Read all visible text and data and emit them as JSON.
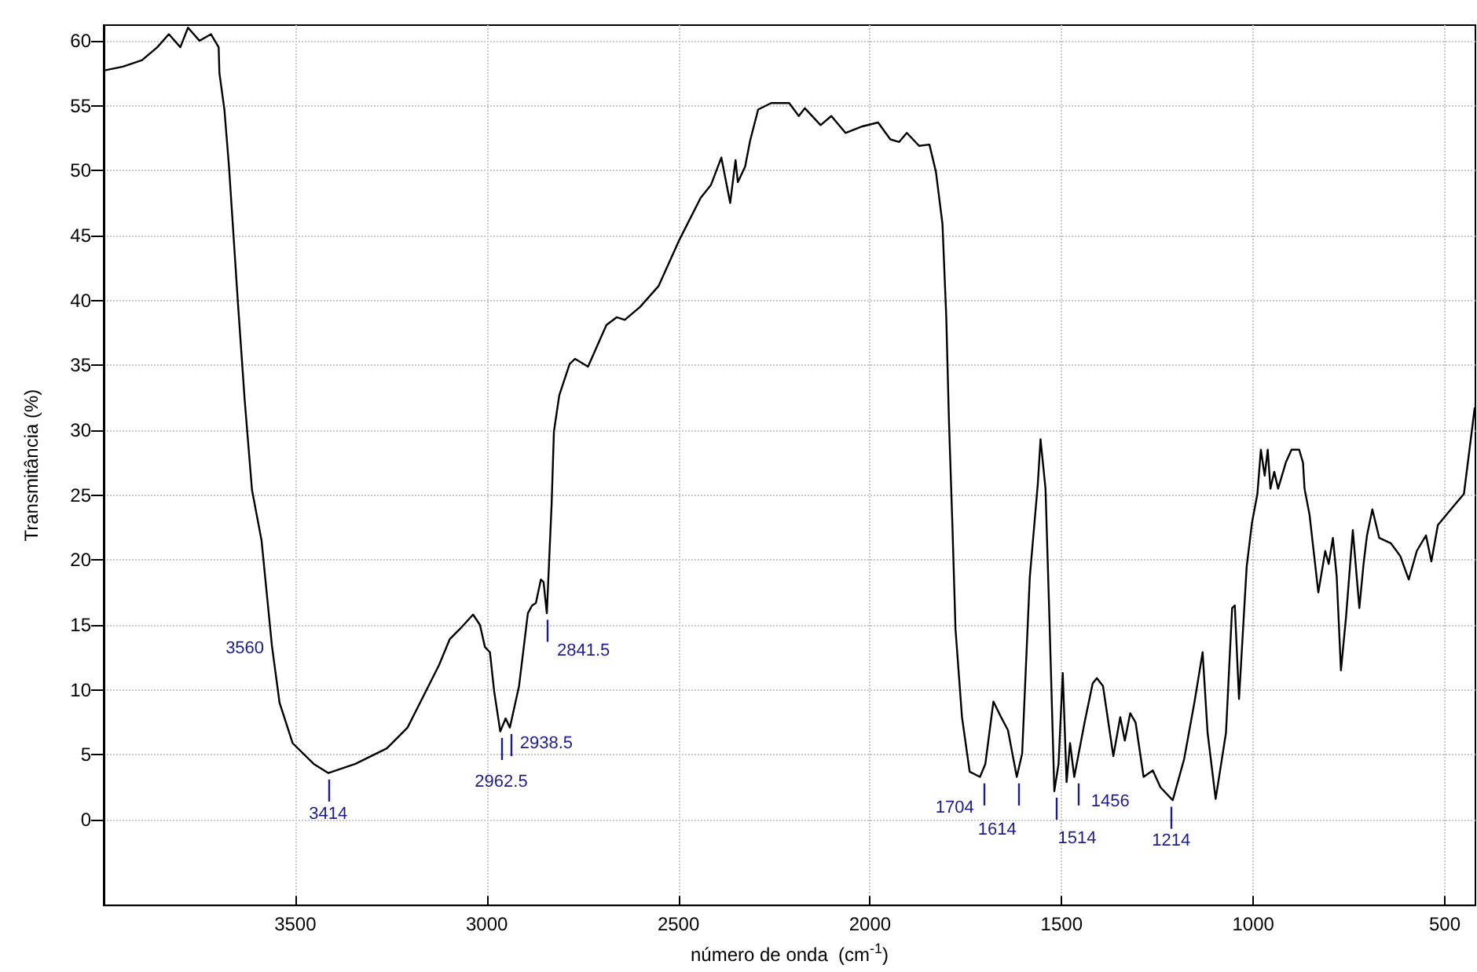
{
  "chart_data": {
    "type": "line",
    "xlabel": "número de onda  (cm$^{-1}$)",
    "ylabel": "Transmitância (%)",
    "xlim": [
      4000,
      420
    ],
    "xticks": [
      3500,
      3000,
      2500,
      2000,
      1500,
      1000,
      500
    ],
    "ylim": [
      -6.6,
      61.2
    ],
    "yticks": [
      0,
      5,
      10,
      15,
      20,
      25,
      30,
      35,
      40,
      45,
      50,
      55,
      60
    ],
    "grid": true,
    "marker": "none",
    "line_style": "solid",
    "series": [
      {
        "color": "#000000",
        "x": [
          4000,
          3950,
          3900,
          3860,
          3830,
          3800,
          3780,
          3750,
          3720,
          3700,
          3698,
          3685,
          3673,
          3649,
          3632,
          3613,
          3588,
          3561,
          3541,
          3507,
          3452,
          3414,
          3343,
          3261,
          3207,
          3166,
          3125,
          3097,
          3070,
          3036,
          3018,
          3005,
          2992,
          2981,
          2965,
          2951,
          2940,
          2916,
          2893,
          2882,
          2872,
          2859,
          2852,
          2843.5,
          2831,
          2825,
          2811,
          2784,
          2770,
          2736,
          2688,
          2661,
          2640,
          2600,
          2552,
          2497,
          2442,
          2415,
          2388,
          2365,
          2351,
          2345,
          2326,
          2313,
          2292,
          2258,
          2211,
          2186,
          2170,
          2129,
          2101,
          2064,
          2020,
          1979,
          1947,
          1924,
          1904,
          1872,
          1845,
          1828,
          1811,
          1801,
          1794,
          1785,
          1777,
          1760,
          1740,
          1713,
          1699,
          1678,
          1658,
          1640,
          1617,
          1603,
          1583,
          1562,
          1555,
          1542,
          1531,
          1519,
          1508,
          1497,
          1487,
          1478,
          1467,
          1440,
          1419,
          1408,
          1392,
          1365,
          1347,
          1335,
          1321,
          1307,
          1286,
          1262,
          1242,
          1210,
          1180,
          1153,
          1132,
          1119,
          1098,
          1071,
          1055,
          1048,
          1037,
          1017,
          1003,
          989,
          980,
          970,
          962,
          955,
          945,
          935,
          915,
          900,
          880,
          870,
          866,
          853,
          830,
          812,
          803,
          792,
          782,
          771,
          758,
          740,
          723,
          712,
          703,
          689,
          671,
          641,
          616,
          594,
          573,
          549,
          535,
          518,
          484,
          450,
          422
        ],
        "values": [
          57.7,
          58,
          58.5,
          59.5,
          60.5,
          59.5,
          61,
          60,
          60.5,
          59.5,
          57.5,
          54.7,
          50.3,
          39.5,
          32.3,
          25.4,
          21.5,
          13.4,
          9,
          5.9,
          4.3,
          3.6,
          4.3,
          5.5,
          7.1,
          9.5,
          11.9,
          13.9,
          14.7,
          15.8,
          15,
          13.3,
          12.9,
          9.9,
          6.8,
          7.8,
          7.1,
          10.3,
          15.9,
          16.5,
          16.7,
          18.5,
          18.3,
          15.9,
          24.3,
          29.9,
          32.7,
          35.1,
          35.5,
          34.9,
          38.1,
          38.7,
          38.5,
          39.5,
          41.1,
          44.7,
          47.9,
          48.9,
          51,
          47.5,
          50.8,
          49.1,
          50.3,
          52.3,
          54.7,
          55.2,
          55.2,
          54.2,
          54.8,
          53.5,
          54.2,
          52.9,
          53.4,
          53.7,
          52.4,
          52.2,
          52.9,
          51.9,
          52,
          49.9,
          45.9,
          38.7,
          30.7,
          22.7,
          14.7,
          7.9,
          3.7,
          3.3,
          4.3,
          9.1,
          7.9,
          6.9,
          3.3,
          5.1,
          18.7,
          25.9,
          29.3,
          25.5,
          14.7,
          2.2,
          4.3,
          11.3,
          2.9,
          5.9,
          3.3,
          7.5,
          10.5,
          10.9,
          10.3,
          4.9,
          7.9,
          6.1,
          8.2,
          7.5,
          3.3,
          3.8,
          2.5,
          1.5,
          4.7,
          9.1,
          12.9,
          6.7,
          1.6,
          6.7,
          16.3,
          16.5,
          9.3,
          19.5,
          22.9,
          25.1,
          28.5,
          26.5,
          28.5,
          25.5,
          26.8,
          25.5,
          27.5,
          28.5,
          28.5,
          27.5,
          25.5,
          23.5,
          17.5,
          20.7,
          19.7,
          21.7,
          18.7,
          11.5,
          15.5,
          22.3,
          16.3,
          19.7,
          21.9,
          23.9,
          21.7,
          21.3,
          20.3,
          18.5,
          20.7,
          21.9,
          19.9,
          22.7,
          23.9,
          25.1,
          31.7
        ]
      }
    ],
    "annotations": [
      {
        "text": "3560",
        "x": 3561,
        "y": 13.4
      },
      {
        "text": "3414",
        "x": 3414,
        "y": 3.6
      },
      {
        "text": "2962.5",
        "x": 2962.5,
        "y": 6.8
      },
      {
        "text": "2938.5",
        "x": 2938.5,
        "y": 7.1
      },
      {
        "text": "2841.5",
        "x": 2841.5,
        "y": 15.9
      },
      {
        "text": "1704",
        "x": 1704,
        "y": 3.3
      },
      {
        "text": "1614",
        "x": 1614,
        "y": 3.3
      },
      {
        "text": "1514",
        "x": 1514,
        "y": 2.2
      },
      {
        "text": "1456",
        "x": 1456,
        "y": 3.3
      },
      {
        "text": "1214",
        "x": 1214,
        "y": 1.5
      }
    ]
  }
}
